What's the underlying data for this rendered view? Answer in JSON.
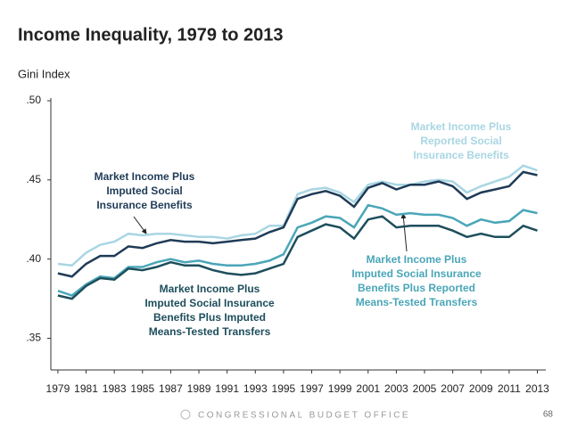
{
  "chart_data": {
    "type": "line",
    "title": "Income Inequality, 1979 to 2013",
    "y_label": "Gini Index",
    "x": [
      1979,
      1980,
      1981,
      1982,
      1983,
      1984,
      1985,
      1986,
      1987,
      1988,
      1989,
      1990,
      1991,
      1992,
      1993,
      1994,
      1995,
      1996,
      1997,
      1998,
      1999,
      2000,
      2001,
      2002,
      2003,
      2004,
      2005,
      2006,
      2007,
      2008,
      2009,
      2010,
      2011,
      2012,
      2013
    ],
    "xlim": [
      1978.5,
      2013.6
    ],
    "ylim": [
      0.33,
      0.5
    ],
    "xticks": [
      1979,
      1981,
      1983,
      1985,
      1987,
      1989,
      1991,
      1993,
      1995,
      1997,
      1999,
      2001,
      2003,
      2005,
      2007,
      2009,
      2011,
      2013
    ],
    "yticks": [
      {
        "value": 0.35,
        "label": ".35"
      },
      {
        "value": 0.4,
        "label": ".40"
      },
      {
        "value": 0.45,
        "label": ".45"
      },
      {
        "value": 0.5,
        "label": ".50"
      }
    ],
    "series": [
      {
        "name": "Market Income Plus Reported Social Insurance Benefits",
        "color": "#a9d6e3",
        "values": [
          0.397,
          0.396,
          0.404,
          0.409,
          0.411,
          0.416,
          0.415,
          0.416,
          0.416,
          0.415,
          0.414,
          0.414,
          0.413,
          0.415,
          0.416,
          0.421,
          0.421,
          0.441,
          0.444,
          0.445,
          0.442,
          0.436,
          0.447,
          0.449,
          0.447,
          0.447,
          0.449,
          0.45,
          0.449,
          0.442,
          0.446,
          0.449,
          0.452,
          0.459,
          0.456
        ]
      },
      {
        "name": "Market Income Plus Imputed Social Insurance Benefits",
        "color": "#1f3b57",
        "values": [
          0.391,
          0.389,
          0.397,
          0.402,
          0.402,
          0.408,
          0.407,
          0.41,
          0.412,
          0.411,
          0.411,
          0.41,
          0.411,
          0.412,
          0.413,
          0.417,
          0.42,
          0.438,
          0.441,
          0.443,
          0.44,
          0.433,
          0.445,
          0.448,
          0.444,
          0.447,
          0.447,
          0.449,
          0.446,
          0.438,
          0.442,
          0.444,
          0.446,
          0.455,
          0.453
        ]
      },
      {
        "name": "Market Income Plus Imputed Social Insurance Benefits Plus Reported Means-Tested Transfers",
        "color": "#4aa6b8",
        "values": [
          0.38,
          0.377,
          0.384,
          0.389,
          0.388,
          0.395,
          0.395,
          0.398,
          0.4,
          0.398,
          0.399,
          0.397,
          0.396,
          0.396,
          0.397,
          0.399,
          0.403,
          0.42,
          0.423,
          0.427,
          0.426,
          0.42,
          0.434,
          0.432,
          0.428,
          0.429,
          0.428,
          0.428,
          0.426,
          0.421,
          0.425,
          0.423,
          0.424,
          0.431,
          0.429
        ]
      },
      {
        "name": "Market Income Plus Imputed Social Insurance Benefits Plus Imputed Means-Tested Transfers",
        "color": "#1d4e5c",
        "values": [
          0.377,
          0.375,
          0.383,
          0.388,
          0.387,
          0.394,
          0.393,
          0.395,
          0.398,
          0.396,
          0.396,
          0.393,
          0.391,
          0.39,
          0.391,
          0.394,
          0.397,
          0.414,
          0.418,
          0.422,
          0.42,
          0.413,
          0.425,
          0.427,
          0.42,
          0.421,
          0.421,
          0.421,
          0.418,
          0.414,
          0.416,
          0.414,
          0.414,
          0.421,
          0.418
        ]
      }
    ]
  },
  "footer": {
    "organization": "CONGRESSIONAL BUDGET OFFICE",
    "page": "68"
  }
}
